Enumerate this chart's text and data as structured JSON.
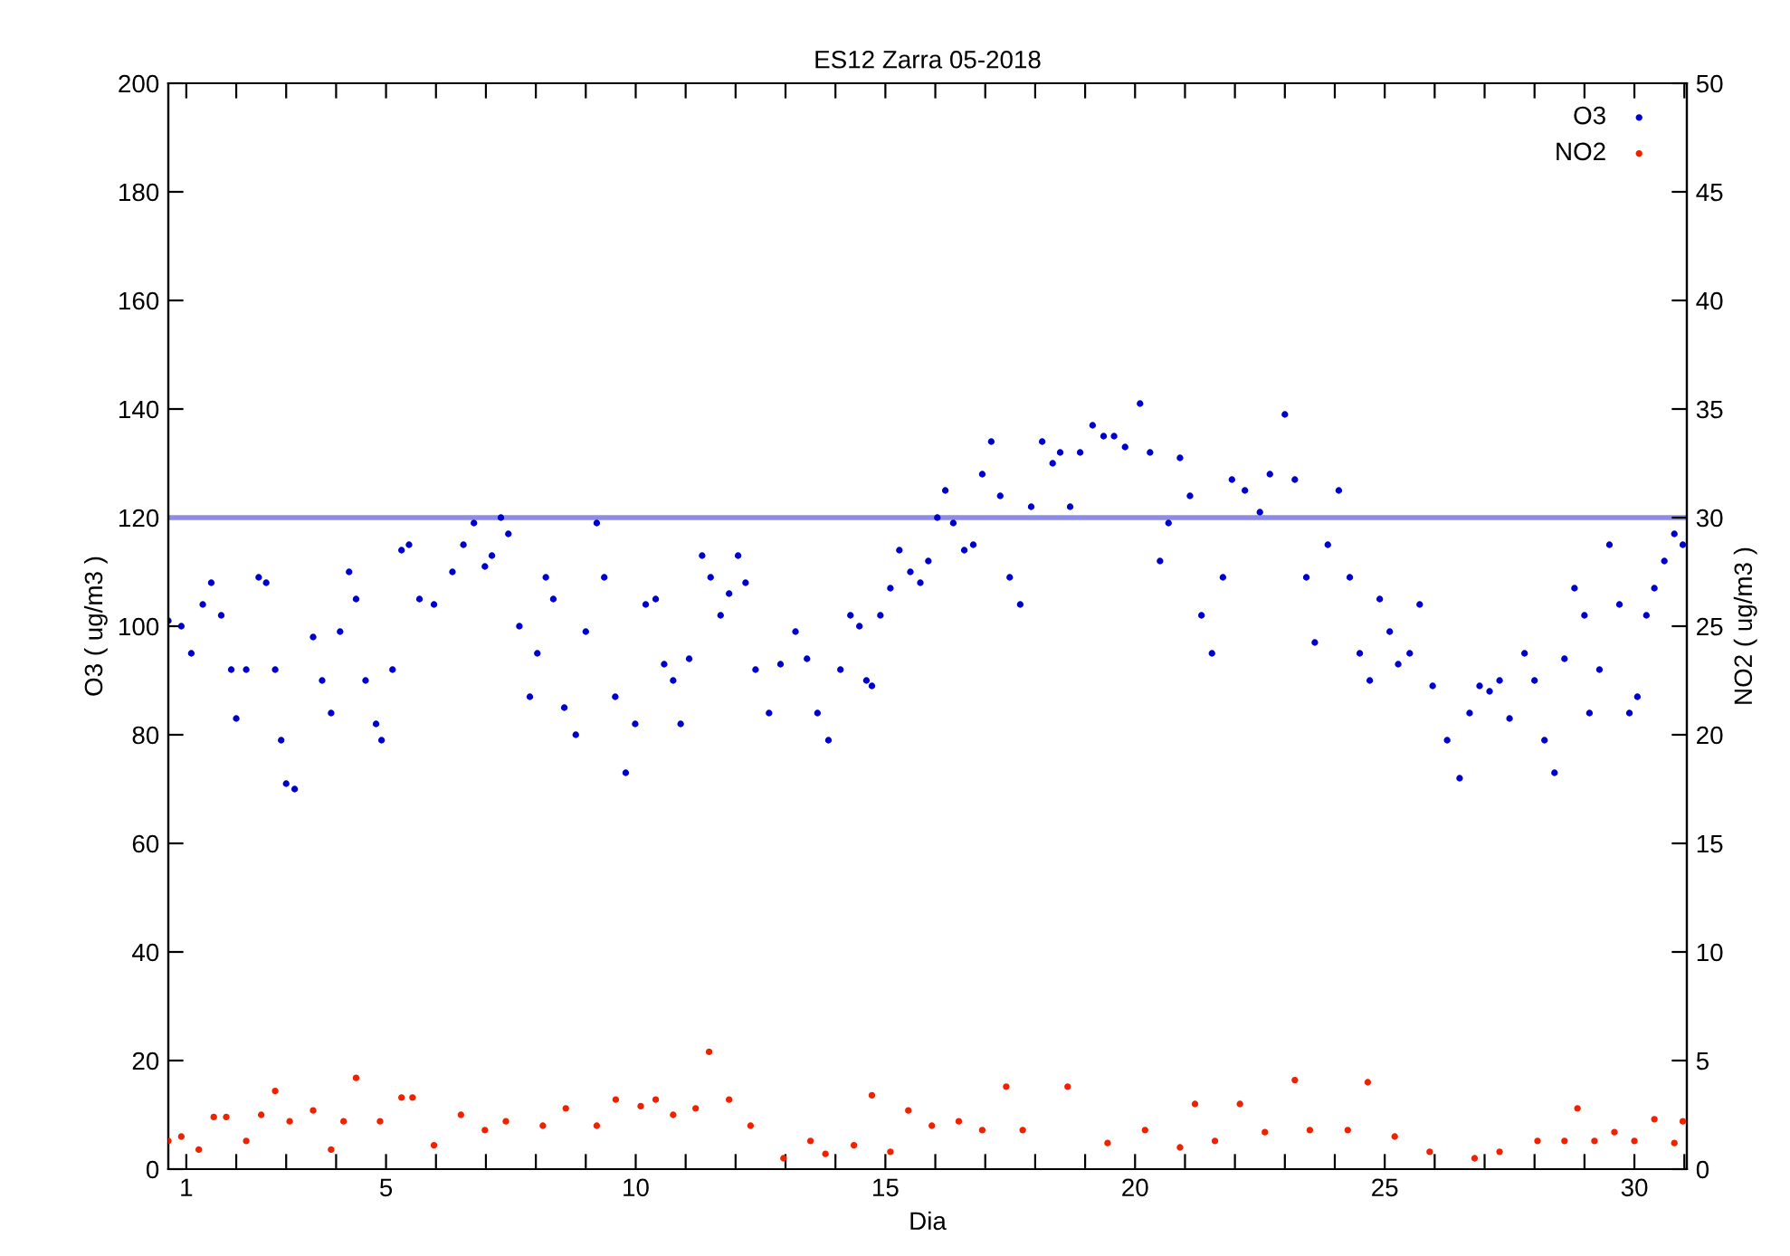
{
  "chart_data": {
    "type": "scatter",
    "title": "ES12 Zarra 05-2018",
    "xlabel": "Dia",
    "ylabel": "O3 ( ug/m3 )",
    "y2label": "NO2 ( ug/m3 )",
    "xlim": [
      0.64,
      31.05
    ],
    "xticks": [
      1,
      {
        "value": 2,
        "label": null
      },
      {
        "value": 3,
        "label": null
      },
      {
        "value": 4,
        "label": null
      },
      5,
      {
        "value": 6,
        "label": null
      },
      {
        "value": 7,
        "label": null
      },
      {
        "value": 8,
        "label": null
      },
      {
        "value": 9,
        "label": null
      },
      10,
      {
        "value": 11,
        "label": null
      },
      {
        "value": 12,
        "label": null
      },
      {
        "value": 13,
        "label": null
      },
      {
        "value": 14,
        "label": null
      },
      15,
      {
        "value": 16,
        "label": null
      },
      {
        "value": 17,
        "label": null
      },
      {
        "value": 18,
        "label": null
      },
      {
        "value": 19,
        "label": null
      },
      20,
      {
        "value": 21,
        "label": null
      },
      {
        "value": 22,
        "label": null
      },
      {
        "value": 23,
        "label": null
      },
      {
        "value": 24,
        "label": null
      },
      25,
      {
        "value": 26,
        "label": null
      },
      {
        "value": 27,
        "label": null
      },
      {
        "value": 28,
        "label": null
      },
      {
        "value": 29,
        "label": null
      },
      30,
      {
        "value": 31,
        "label": null
      }
    ],
    "ylim": [
      0,
      200
    ],
    "yticks": [
      0,
      20,
      40,
      60,
      80,
      100,
      120,
      140,
      160,
      180,
      200
    ],
    "y2lim": [
      0,
      50
    ],
    "y2ticks": [
      0,
      5,
      10,
      15,
      20,
      25,
      30,
      35,
      40,
      45,
      50
    ],
    "grid": false,
    "legend": "top right",
    "marker": "circle",
    "ref_lines": [
      {
        "axis": "y",
        "value": 120,
        "color": "#8c8ce6"
      }
    ],
    "series": [
      {
        "name": "O3",
        "color": "#0000cc",
        "x": [
          0.64,
          0.9,
          1.1,
          1.33,
          1.5,
          1.7,
          1.9,
          2.0,
          2.2,
          2.45,
          2.6,
          2.78,
          2.9,
          3.0,
          3.17,
          null,
          3.54,
          3.72,
          3.9,
          4.08,
          4.26,
          4.4,
          4.59,
          4.8,
          4.91,
          5.13,
          5.31,
          5.46,
          5.67,
          5.96,
          6.33,
          6.55,
          6.76,
          6.98,
          7.12,
          7.3,
          7.45,
          7.67,
          7.88,
          8.03,
          8.2,
          8.35,
          8.57,
          8.8,
          9.0,
          9.22,
          9.37,
          9.59,
          9.8,
          9.99,
          10.2,
          10.4,
          10.57,
          10.75,
          10.9,
          11.07,
          11.33,
          11.5,
          11.7,
          11.87,
          12.05,
          12.2,
          12.4,
          12.67,
          12.9,
          13.2,
          13.43,
          13.64,
          13.86,
          14.1,
          14.3,
          14.48,
          14.62,
          14.73,
          null,
          14.9,
          15.1,
          15.28,
          15.5,
          15.7,
          15.86,
          16.04,
          16.2,
          16.36,
          16.58,
          16.76,
          16.94,
          17.12,
          17.3,
          17.49,
          17.7,
          17.92,
          18.14,
          18.35,
          18.5,
          18.7,
          18.9,
          19.15,
          19.37,
          19.58,
          19.8,
          20.1,
          20.3,
          20.5,
          20.67,
          20.9,
          21.1,
          21.33,
          21.54,
          21.76,
          21.94,
          22.2,
          22.5,
          22.7,
          23.0,
          23.2,
          23.43,
          23.6,
          23.86,
          24.08,
          24.3,
          24.5,
          24.7,
          24.9,
          25.1,
          25.27,
          25.5,
          25.7,
          25.96,
          26.25,
          26.5,
          26.7,
          26.9,
          27.1,
          27.3,
          27.5,
          27.8,
          28.0,
          28.2,
          28.4,
          28.6,
          28.8,
          29.0,
          29.1,
          29.3,
          29.5,
          29.7,
          29.9,
          30.06,
          30.24,
          30.4,
          30.6,
          30.8,
          30.97
        ],
        "values": [
          101,
          100,
          95,
          104,
          108,
          102,
          92,
          83,
          92,
          109,
          108,
          92,
          79,
          71,
          70,
          null,
          98,
          90,
          84,
          99,
          110,
          105,
          90,
          82,
          79,
          92,
          114,
          115,
          105,
          104,
          110,
          115,
          119,
          111,
          113,
          120,
          117,
          100,
          87,
          95,
          109,
          105,
          85,
          80,
          99,
          119,
          109,
          87,
          73,
          82,
          104,
          105,
          93,
          90,
          82,
          94,
          113,
          109,
          102,
          106,
          113,
          108,
          92,
          84,
          93,
          99,
          94,
          84,
          79,
          92,
          102,
          100,
          90,
          89,
          null,
          102,
          107,
          114,
          110,
          108,
          112,
          120,
          125,
          119,
          114,
          115,
          128,
          134,
          124,
          109,
          104,
          122,
          134,
          130,
          132,
          122,
          132,
          137,
          135,
          135,
          133,
          141,
          132,
          112,
          119,
          131,
          124,
          102,
          95,
          109,
          127,
          125,
          121,
          128,
          139,
          127,
          109,
          97,
          115,
          125,
          109,
          95,
          90,
          105,
          99,
          93,
          95,
          104,
          89,
          79,
          72,
          84,
          89,
          88,
          90,
          83,
          95,
          90,
          79,
          73,
          94,
          107,
          102,
          84,
          92,
          115,
          104,
          84,
          87,
          102,
          107,
          112,
          117,
          115
        ]
      },
      {
        "name": "NO2",
        "color": "#ee2200",
        "axis": "y2",
        "x": [
          0.64,
          0.9,
          1.25,
          1.55,
          1.8,
          2.2,
          2.5,
          2.78,
          3.07,
          null,
          3.54,
          3.9,
          4.15,
          4.4,
          4.88,
          5.31,
          5.53,
          5.96,
          6.5,
          6.98,
          7.4,
          8.14,
          8.6,
          9.22,
          9.6,
          10.1,
          10.4,
          10.75,
          11.2,
          11.47,
          11.87,
          12.3,
          12.96,
          13.5,
          13.8,
          14.37,
          14.73,
          null,
          15.1,
          15.46,
          15.93,
          16.47,
          16.94,
          17.42,
          17.75,
          18.65,
          19.45,
          20.2,
          20.9,
          21.2,
          21.6,
          22.1,
          22.6,
          23.2,
          23.5,
          24.26,
          24.66,
          25.2,
          25.9,
          26.8,
          27.3,
          28.06,
          28.6,
          28.86,
          29.2,
          29.6,
          30.0,
          30.4,
          30.8,
          30.97
        ],
        "values": [
          1.3,
          1.5,
          0.9,
          2.4,
          2.4,
          1.3,
          2.5,
          3.6,
          2.2,
          null,
          2.7,
          0.9,
          2.2,
          4.2,
          2.2,
          3.3,
          3.3,
          1.1,
          2.5,
          1.8,
          2.2,
          2.0,
          2.8,
          2.0,
          3.2,
          2.9,
          3.2,
          2.5,
          2.8,
          5.4,
          3.2,
          2.0,
          0.5,
          1.3,
          0.7,
          1.1,
          3.4,
          null,
          0.8,
          2.7,
          2.0,
          2.2,
          1.8,
          3.8,
          1.8,
          3.8,
          1.2,
          1.8,
          1.0,
          3.0,
          1.3,
          3.0,
          1.7,
          4.1,
          1.8,
          1.8,
          4.0,
          1.5,
          0.8,
          0.5,
          0.8,
          1.3,
          1.3,
          2.8,
          1.3,
          1.7,
          1.3,
          2.3,
          1.2,
          2.2
        ]
      }
    ]
  }
}
